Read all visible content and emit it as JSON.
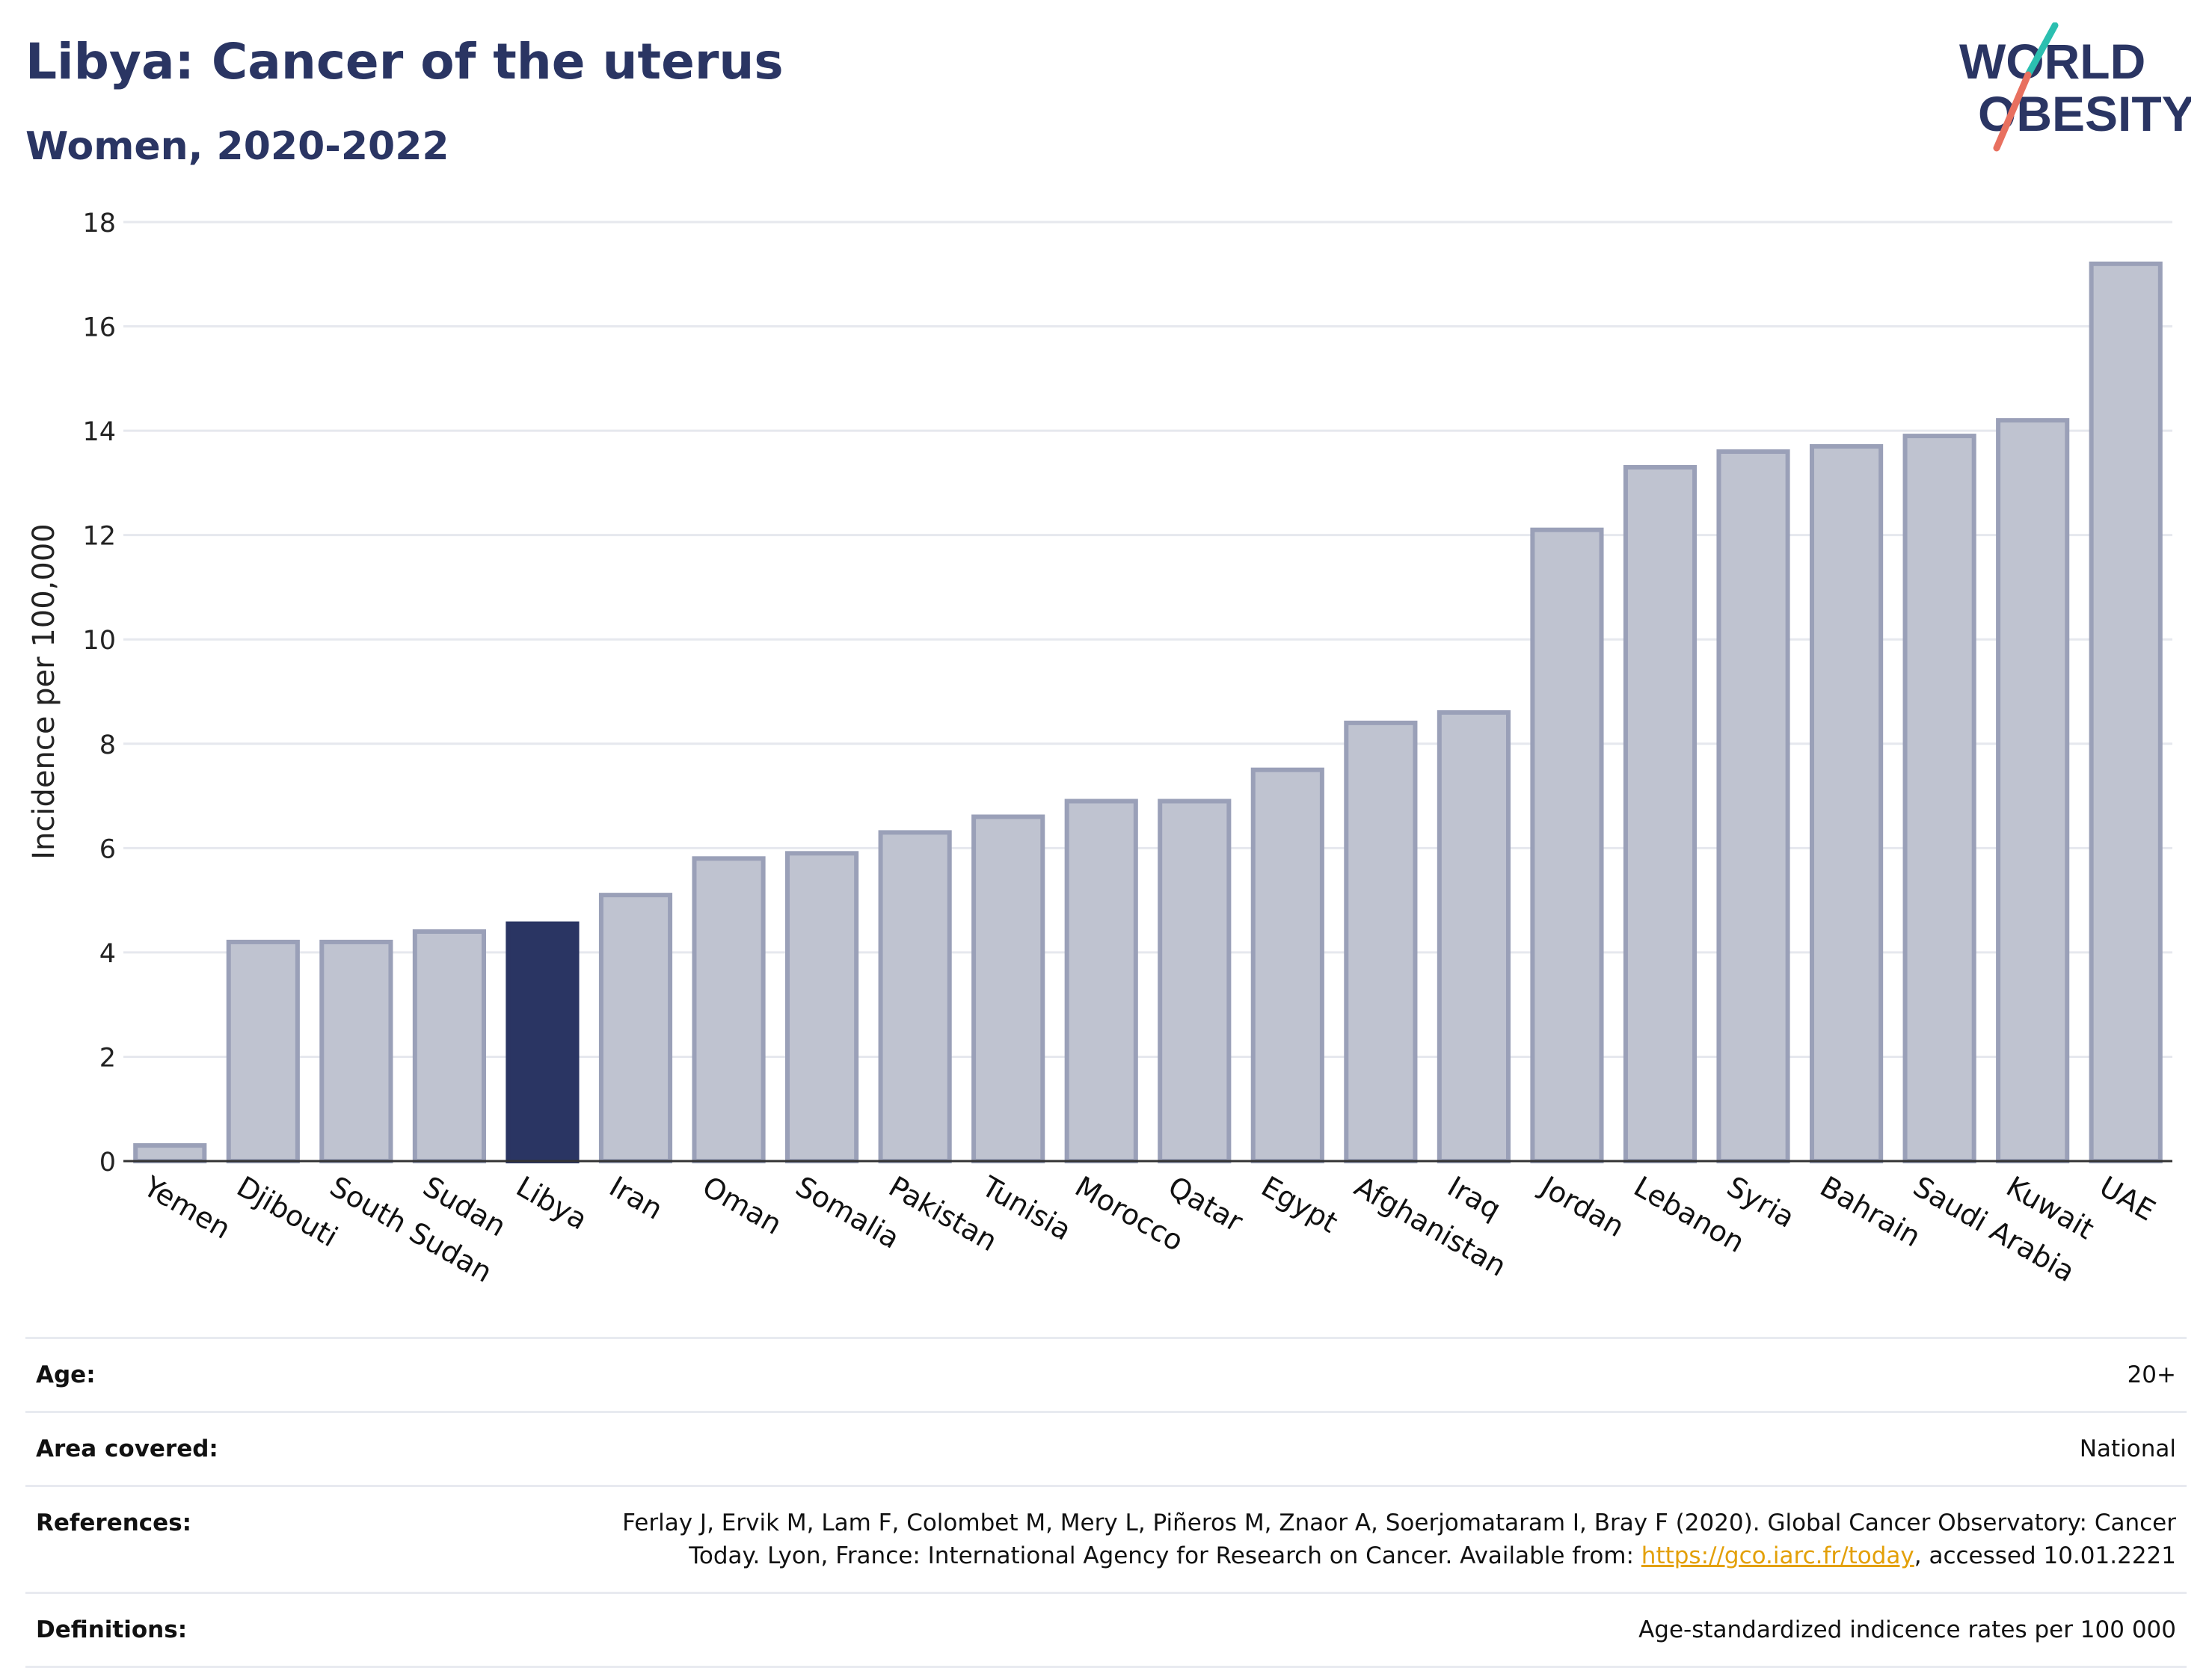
{
  "header": {
    "title": "Libya: Cancer of the uterus",
    "subtitle": "Women, 2020-2022",
    "logo_line1": "WORLD",
    "logo_line2": "OBESITY"
  },
  "colors": {
    "title": "#2a3563",
    "highlight_bar": "#2a3563",
    "bar_fill": "#bfc3d0",
    "bar_stroke": "#9aa0b8",
    "logo_text": "#2a3563",
    "logo_slash_teal": "#2bbfb0",
    "logo_slash_coral": "#e8705f",
    "link": "#e3a008"
  },
  "chart_data": {
    "type": "bar",
    "ylabel": "Incidence per 100,000",
    "ylim": [
      0,
      18
    ],
    "yticks": [
      0,
      2,
      4,
      6,
      8,
      10,
      12,
      14,
      16,
      18
    ],
    "grid": true,
    "highlight": "Libya",
    "categories": [
      "Yemen",
      "Djibouti",
      "South Sudan",
      "Sudan",
      "Libya",
      "Iran",
      "Oman",
      "Somalia",
      "Pakistan",
      "Tunisia",
      "Morocco",
      "Qatar",
      "Egypt",
      "Afghanistan",
      "Iraq",
      "Jordan",
      "Lebanon",
      "Syria",
      "Bahrain",
      "Saudi Arabia",
      "Kuwait",
      "UAE"
    ],
    "values": [
      0.3,
      4.2,
      4.2,
      4.4,
      4.55,
      5.1,
      5.8,
      5.9,
      6.3,
      6.6,
      6.9,
      6.9,
      7.5,
      8.4,
      8.6,
      12.1,
      13.3,
      13.6,
      13.7,
      13.9,
      14.2,
      17.2
    ]
  },
  "info": {
    "age_label": "Age:",
    "age_value": "20+",
    "area_label": "Area covered:",
    "area_value": "National",
    "references_label": "References:",
    "references_text_1": "Ferlay J, Ervik M, Lam F, Colombet M, Mery L, Piñeros M, Znaor A, Soerjomataram I, Bray F (2020). Global Cancer Observatory: Cancer Today. Lyon, France: International Agency for Research on Cancer. Available from: ",
    "references_link": "https://gco.iarc.fr/today",
    "references_text_2": ", accessed 10.01.2221",
    "definitions_label": "Definitions:",
    "definitions_value": "Age-standardized indicence rates per 100 000"
  }
}
